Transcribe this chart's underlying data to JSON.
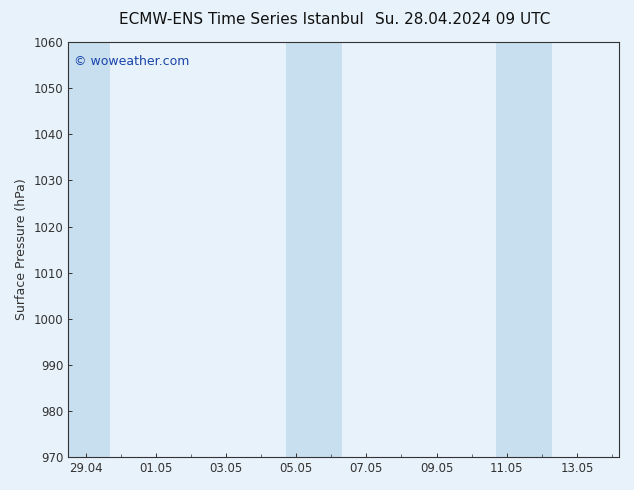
{
  "title_left": "ECMW-ENS Time Series Istanbul",
  "title_right": "Su. 28.04.2024 09 UTC",
  "ylabel": "Surface Pressure (hPa)",
  "ylim": [
    970,
    1060
  ],
  "yticks": [
    970,
    980,
    990,
    1000,
    1010,
    1020,
    1030,
    1040,
    1050,
    1060
  ],
  "xtick_labels": [
    "29.04",
    "01.05",
    "03.05",
    "05.05",
    "07.05",
    "09.05",
    "11.05",
    "13.05"
  ],
  "xtick_positions": [
    0,
    2,
    4,
    6,
    8,
    10,
    12,
    14
  ],
  "xlim": [
    -0.5,
    15.2
  ],
  "bg_color": "#e8f2fa",
  "plot_bg_color": "#e8f2fa",
  "shaded_bands": [
    {
      "x_start": -0.5,
      "x_end": 0.7
    },
    {
      "x_start": 5.7,
      "x_end": 7.3
    },
    {
      "x_start": 11.7,
      "x_end": 13.3
    }
  ],
  "shaded_color": "#c8dff0",
  "watermark_text": "© woweather.com",
  "watermark_color": "#1a44aa",
  "title_fontsize": 11,
  "tick_label_fontsize": 8.5,
  "ylabel_fontsize": 9,
  "watermark_fontsize": 9,
  "tick_color": "#333333",
  "spine_color": "#333333",
  "title_color": "#111111"
}
